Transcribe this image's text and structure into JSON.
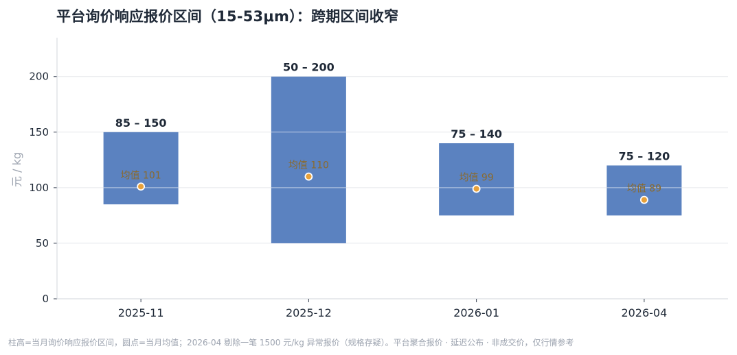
{
  "title": "平台询价响应报价区间（15-53μm）：跨期区间收窄",
  "footnote": "柱高=当月询价响应报价区间，圆点=当月均值；2026-04 剔除一笔 1500 元/kg 异常报价（规格存疑）。平台聚合报价 · 延迟公布 · 非成交价，仅行情参考",
  "colors": {
    "bar": "#5b82c0",
    "dot_fill": "#e8a13a",
    "dot_stroke": "#ffffff",
    "grid": "#e5e7eb",
    "axis": "#d1d5db",
    "mean_label": "#8a6a2e"
  },
  "chart_data": {
    "type": "bar",
    "subtype": "floating-range",
    "categories": [
      "2025-11",
      "2025-12",
      "2026-01",
      "2026-04"
    ],
    "series": [
      {
        "low": [
          85,
          50,
          75,
          75
        ],
        "high": [
          150,
          200,
          140,
          120
        ],
        "mean": [
          101,
          110,
          99,
          89
        ]
      }
    ],
    "range_labels": [
      "85 – 150",
      "50 – 200",
      "75 – 140",
      "75 – 120"
    ],
    "mean_labels": [
      "均值 101",
      "均值 110",
      "均值 99",
      "均值 89"
    ],
    "ylabel": "元 / kg",
    "xlabel": "",
    "ylim": [
      0,
      235
    ],
    "yticks": [
      0,
      50,
      100,
      150,
      200
    ],
    "grid": true,
    "legend": "none"
  }
}
